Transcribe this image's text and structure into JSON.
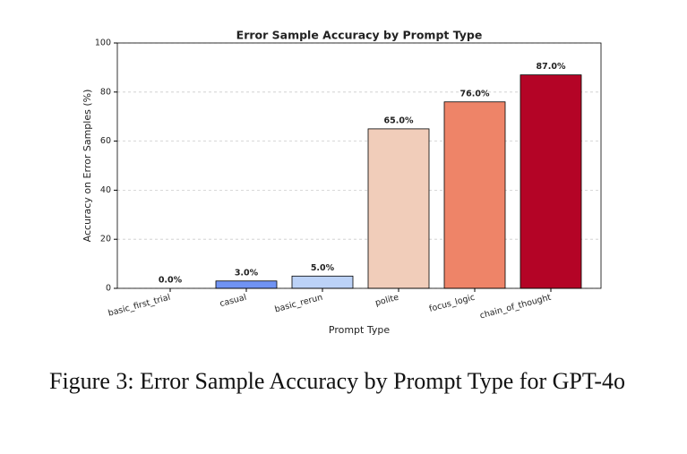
{
  "chart_data": {
    "type": "bar",
    "title": "Error Sample Accuracy by Prompt Type",
    "x_label": "Prompt Type",
    "y_label": "Accuracy on Error Samples (%)",
    "categories": [
      "basic_first_trial",
      "casual",
      "basic_rerun",
      "polite",
      "focus_logic",
      "chain_of_thought"
    ],
    "values": [
      0,
      3,
      5,
      65,
      76,
      87
    ],
    "value_labels": [
      "0.0%",
      "3.0%",
      "5.0%",
      "65.0%",
      "76.0%",
      "87.0%"
    ],
    "colors": [
      "#3b4cc0",
      "#7093f3",
      "#bcd2f7",
      "#f1cdba",
      "#ee8468",
      "#b40426"
    ],
    "ylim": [
      0,
      100
    ],
    "yticks": [
      0,
      20,
      40,
      60,
      80,
      100
    ],
    "grid": true
  },
  "caption": "Figure 3: Error Sample Accuracy by Prompt Type for GPT-4o"
}
